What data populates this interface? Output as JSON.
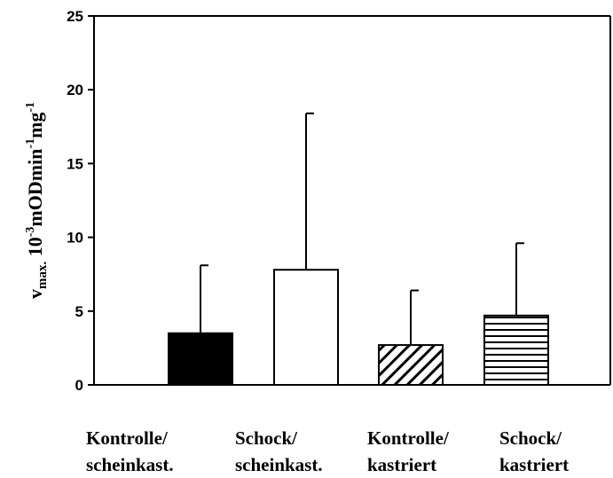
{
  "chart_data": {
    "type": "bar",
    "title": "",
    "xlabel": "",
    "ylabel": {
      "base": "v",
      "sub": "max.",
      "space": " ",
      "p1": "10",
      "sup1": "-3",
      "p2": "mODmin",
      "sup2": "-1",
      "p3": "mg",
      "sup3": "-1"
    },
    "ylim": [
      0,
      25
    ],
    "yticks": [
      0,
      5,
      10,
      15,
      20,
      25
    ],
    "ytick_labels": [
      "0",
      "5",
      "10",
      "15",
      "20",
      "25"
    ],
    "grid": false,
    "legend": "none",
    "categories": [
      {
        "line1": "Kontrolle/",
        "line2": "scheinkast."
      },
      {
        "line1": "Schock/",
        "line2": "scheinkast."
      },
      {
        "line1": "Kontrolle/",
        "line2": "kastriert"
      },
      {
        "line1": "Schock/",
        "line2": "kastriert"
      }
    ],
    "values": [
      3.5,
      7.8,
      2.7,
      4.7
    ],
    "error_upper": [
      8.1,
      18.4,
      6.4,
      9.6
    ],
    "fills": [
      "solid-black",
      "white",
      "diagonal-hatch",
      "horizontal-hatch"
    ],
    "colors": {
      "ink": "#000000",
      "background": "#ffffff"
    }
  }
}
